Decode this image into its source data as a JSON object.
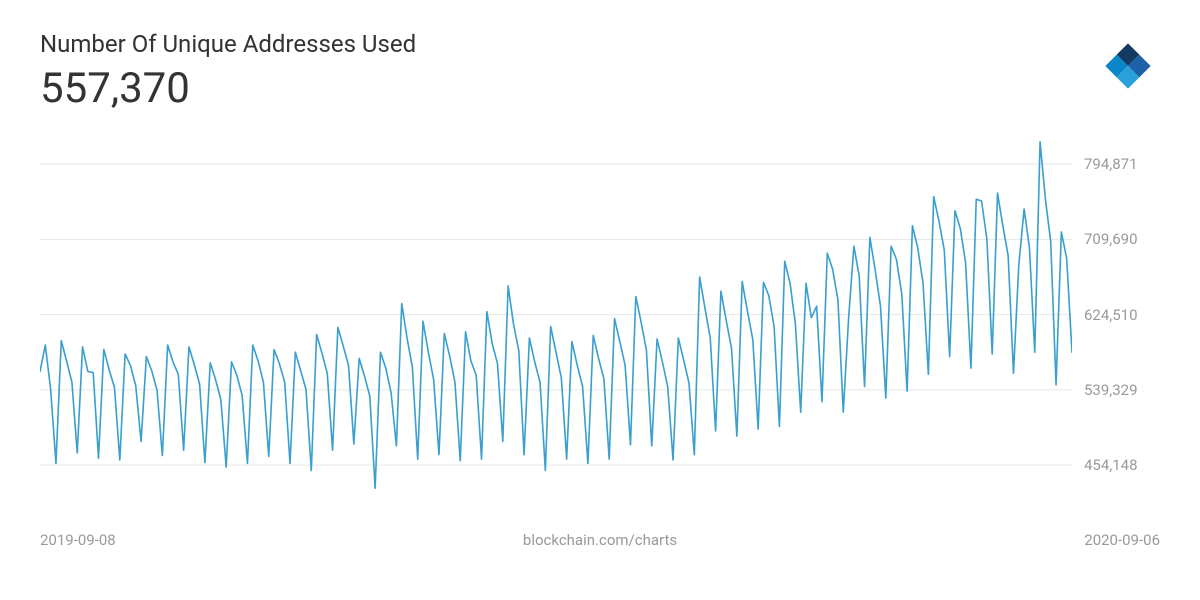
{
  "header": {
    "title": "Number Of Unique Addresses Used",
    "value": "557,370"
  },
  "logo": {
    "colors": {
      "top": "#123a62",
      "right": "#1d62a8",
      "bottom": "#2aa0d8",
      "left": "#0b86c9"
    }
  },
  "chart": {
    "type": "line",
    "line_color": "#3a9fcf",
    "line_width": 1.6,
    "background_color": "#ffffff",
    "grid_color": "#e6e6e6",
    "ylim": [
      400000,
      830000
    ],
    "y_ticks": [
      454148,
      539329,
      624510,
      709690,
      794871
    ],
    "y_tick_labels": [
      "454,148",
      "539,329",
      "624,510",
      "709,690",
      "794,871"
    ],
    "y_label_fontsize": 15,
    "y_label_color": "#999999",
    "x_start_label": "2019-09-08",
    "x_end_label": "2020-09-06",
    "source_label": "blockchain.com/charts",
    "footer_fontsize": 15,
    "footer_color": "#999999",
    "values": [
      560000,
      590000,
      540000,
      456000,
      595000,
      572000,
      548000,
      468000,
      588000,
      560000,
      559000,
      462000,
      585000,
      562000,
      542000,
      460000,
      580000,
      567000,
      544000,
      481000,
      577000,
      561000,
      539000,
      465000,
      590000,
      571000,
      557000,
      471000,
      588000,
      568000,
      546000,
      457000,
      570000,
      551000,
      528000,
      452000,
      571000,
      556000,
      533000,
      456000,
      590000,
      572000,
      548000,
      464000,
      585000,
      569000,
      548000,
      456000,
      582000,
      561000,
      540000,
      448000,
      602000,
      581000,
      558000,
      471000,
      610000,
      589000,
      567000,
      478000,
      575000,
      555000,
      532000,
      428000,
      582000,
      564000,
      536000,
      476000,
      637000,
      598000,
      565000,
      461000,
      617000,
      582000,
      551000,
      466000,
      603000,
      578000,
      548000,
      459000,
      605000,
      572000,
      556000,
      461000,
      628000,
      592000,
      569000,
      481000,
      657000,
      614000,
      584000,
      466000,
      598000,
      571000,
      548000,
      448000,
      611000,
      582000,
      553000,
      461000,
      594000,
      567000,
      543000,
      456000,
      601000,
      575000,
      552000,
      461000,
      620000,
      594000,
      567000,
      477000,
      645000,
      616000,
      584000,
      476000,
      597000,
      571000,
      543000,
      460000,
      598000,
      573000,
      547000,
      466000,
      667000,
      632000,
      598000,
      493000,
      651000,
      618000,
      586000,
      487000,
      662000,
      628000,
      596000,
      495000,
      661000,
      646000,
      611000,
      498000,
      685000,
      660000,
      614000,
      514000,
      660000,
      621000,
      634000,
      526000,
      694000,
      676000,
      641000,
      514000,
      620000,
      702000,
      668000,
      543000,
      712000,
      675000,
      634000,
      530000,
      702000,
      687000,
      648000,
      538000,
      725000,
      700000,
      660000,
      557000,
      758000,
      730000,
      697000,
      577000,
      742000,
      722000,
      683000,
      564000,
      755000,
      753000,
      710000,
      580000,
      762000,
      725000,
      691000,
      558000,
      681000,
      744000,
      700000,
      582000,
      820000,
      755000,
      707000,
      545000,
      718000,
      688000,
      582000
    ]
  }
}
